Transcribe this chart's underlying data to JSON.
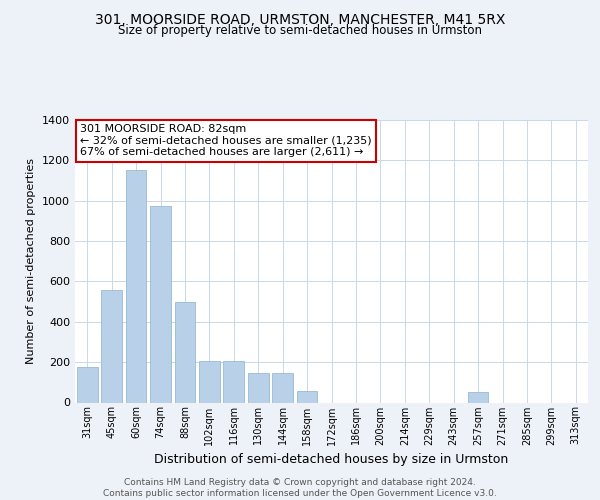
{
  "title": "301, MOORSIDE ROAD, URMSTON, MANCHESTER, M41 5RX",
  "subtitle": "Size of property relative to semi-detached houses in Urmston",
  "xlabel": "Distribution of semi-detached houses by size in Urmston",
  "ylabel": "Number of semi-detached properties",
  "bins": [
    "31sqm",
    "45sqm",
    "60sqm",
    "74sqm",
    "88sqm",
    "102sqm",
    "116sqm",
    "130sqm",
    "144sqm",
    "158sqm",
    "172sqm",
    "186sqm",
    "200sqm",
    "214sqm",
    "229sqm",
    "243sqm",
    "257sqm",
    "271sqm",
    "285sqm",
    "299sqm",
    "313sqm"
  ],
  "values": [
    175,
    560,
    1150,
    975,
    500,
    205,
    205,
    145,
    145,
    55,
    0,
    0,
    0,
    0,
    0,
    0,
    50,
    0,
    0,
    0,
    0
  ],
  "bar_color": "#b8d0e8",
  "bar_edge_color": "#8ab4cc",
  "annotation_text": "301 MOORSIDE ROAD: 82sqm\n← 32% of semi-detached houses are smaller (1,235)\n67% of semi-detached houses are larger (2,611) →",
  "annotation_box_color": "#ffffff",
  "annotation_box_edge_color": "#cc0000",
  "ylim": [
    0,
    1400
  ],
  "yticks": [
    0,
    200,
    400,
    600,
    800,
    1000,
    1200,
    1400
  ],
  "bg_color": "#edf2f8",
  "plot_bg_color": "#ffffff",
  "footer": "Contains HM Land Registry data © Crown copyright and database right 2024.\nContains public sector information licensed under the Open Government Licence v3.0.",
  "grid_color": "#c8d8e8"
}
